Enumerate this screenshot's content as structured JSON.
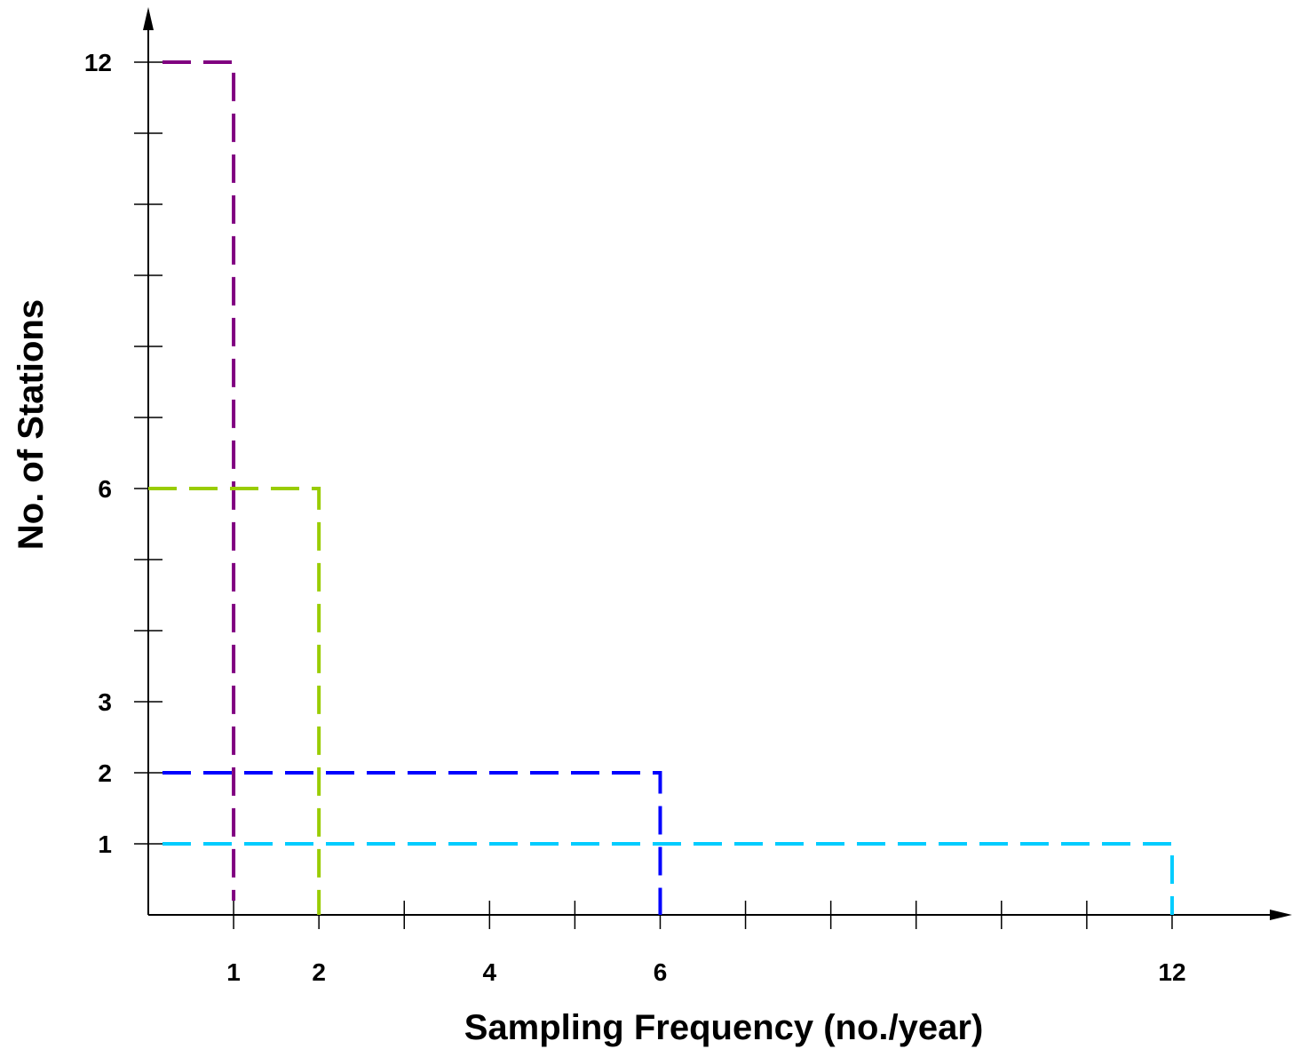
{
  "chart_data": {
    "type": "line",
    "xlabel": "Sampling Frequency (no./year)",
    "ylabel": "No. of Stations",
    "xlim": [
      0,
      12
    ],
    "ylim": [
      0,
      12
    ],
    "x_tick_labels": [
      {
        "value": 1,
        "label": "1"
      },
      {
        "value": 2,
        "label": "2"
      },
      {
        "value": 4,
        "label": "4"
      },
      {
        "value": 6,
        "label": "6"
      },
      {
        "value": 12,
        "label": "12"
      }
    ],
    "y_tick_labels": [
      {
        "value": 1,
        "label": "1"
      },
      {
        "value": 2,
        "label": "2"
      },
      {
        "value": 3,
        "label": "3"
      },
      {
        "value": 6,
        "label": "6"
      },
      {
        "value": 12,
        "label": "12"
      }
    ],
    "series": [
      {
        "frequency": 1,
        "stations": 12,
        "color": "#800080"
      },
      {
        "frequency": 2,
        "stations": 6,
        "color": "#99cc00"
      },
      {
        "frequency": 6,
        "stations": 2,
        "color": "#0000ff"
      },
      {
        "frequency": 12,
        "stations": 1,
        "color": "#00ccff"
      }
    ],
    "grid": false,
    "legend": "none"
  }
}
